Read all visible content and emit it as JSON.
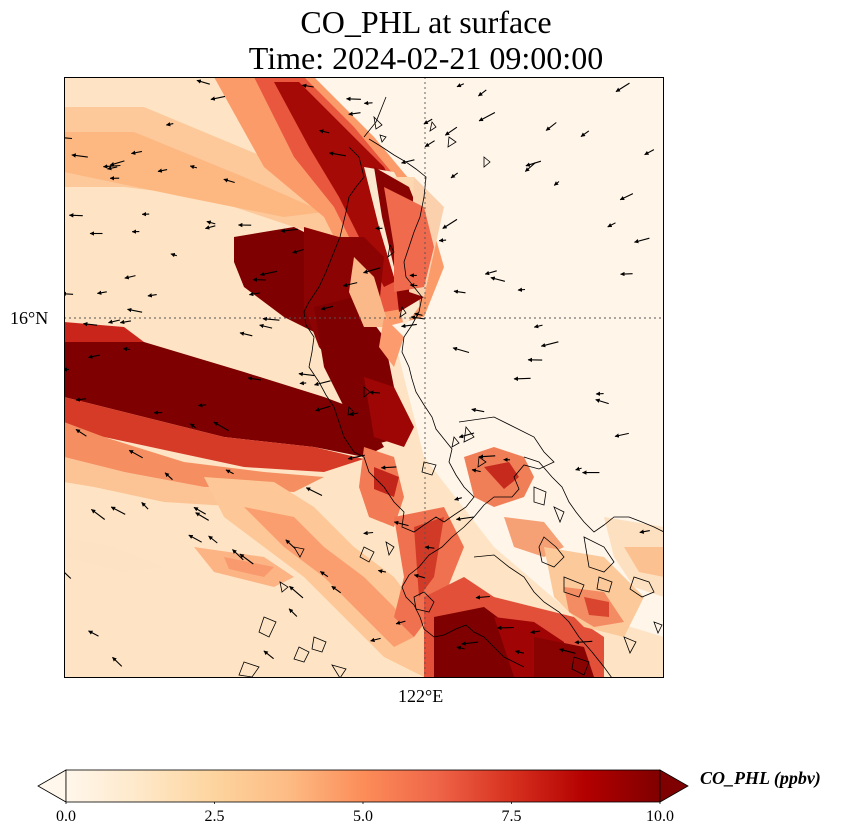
{
  "title": {
    "line1": "CO_PHL at surface",
    "line2": "Time: 2024-02-21 09:00:00"
  },
  "axes": {
    "lat_tick": "16°N",
    "lon_tick": "122°E",
    "gridlines": "dotted"
  },
  "colorbar": {
    "label": "CO_PHL (ppbv)",
    "ticks": [
      "0.0",
      "2.5",
      "5.0",
      "7.5",
      "10.0"
    ],
    "min": 0,
    "max": 10,
    "extend": "both",
    "colormap": "OrRd",
    "colors": [
      "#fff7ec",
      "#fee8c8",
      "#fdd49e",
      "#fdbb84",
      "#fc8d59",
      "#ef6548",
      "#d7301f",
      "#b30000",
      "#7f0000"
    ]
  },
  "chart_data": {
    "type": "heatmap",
    "title": "CO_PHL at surface",
    "subtitle": "Time: 2024-02-21 09:00:00",
    "variable": "CO_PHL",
    "units": "ppbv",
    "value_range": [
      0,
      10
    ],
    "overlays": [
      "wind vectors",
      "coastlines"
    ]
  }
}
